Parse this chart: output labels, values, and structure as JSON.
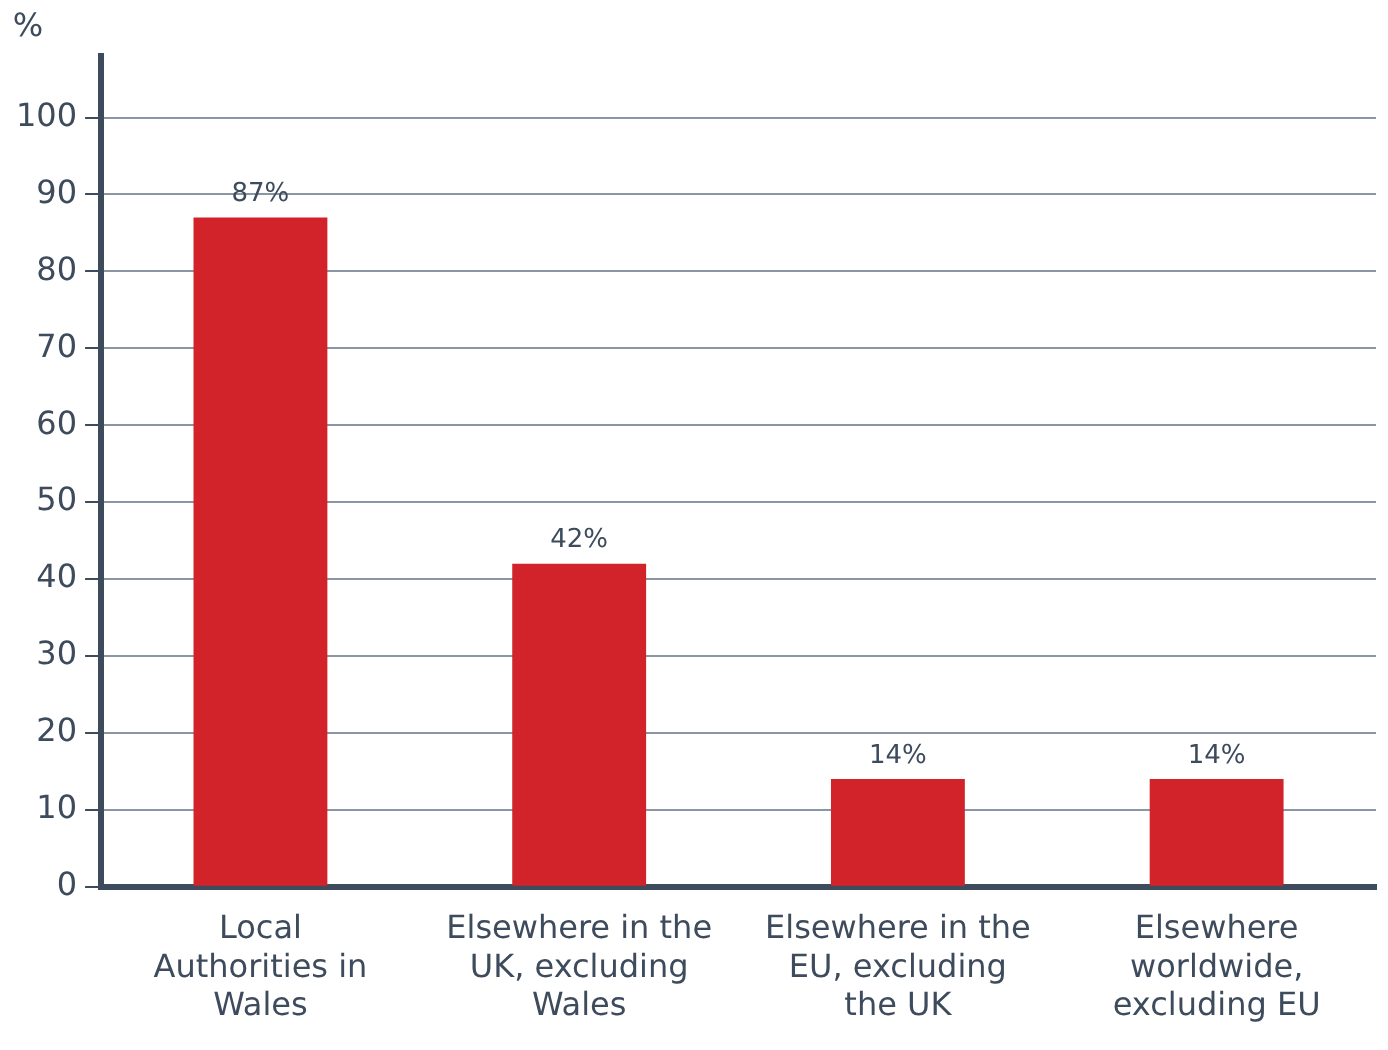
{
  "chart_data": {
    "type": "bar",
    "ylabel": "%",
    "categories": [
      "Local Authorities in Wales",
      "Elsewhere in the UK, excluding Wales",
      "Elsewhere in the EU, excluding the UK",
      "Elsewhere worldwide, excluding EU"
    ],
    "values": [
      87,
      42,
      14,
      14
    ],
    "value_labels": [
      "87%",
      "42%",
      "14%",
      "14%"
    ],
    "color": "#d2232a",
    "ylim": [
      0,
      108
    ],
    "yticks": [
      0,
      10,
      20,
      30,
      40,
      50,
      60,
      70,
      80,
      90,
      100
    ],
    "grid": "y"
  }
}
